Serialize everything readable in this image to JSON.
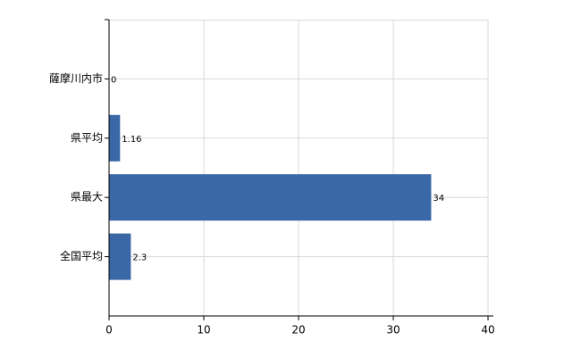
{
  "chart_data": {
    "type": "bar",
    "orientation": "horizontal",
    "categories": [
      "薩摩川内市",
      "県平均",
      "県最大",
      "全国平均"
    ],
    "values": [
      0,
      1.16,
      34,
      2.3
    ],
    "color": "#3a67a6",
    "xlim": [
      0,
      40
    ],
    "xticks": [
      0,
      10,
      20,
      30,
      40
    ],
    "grid": true
  }
}
